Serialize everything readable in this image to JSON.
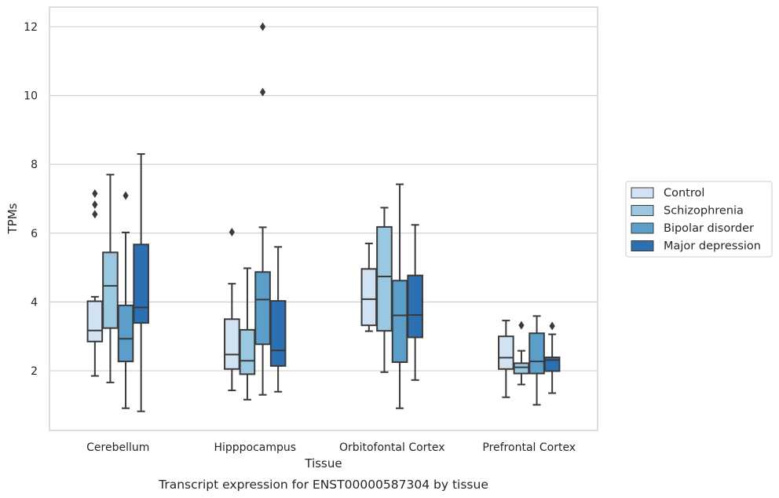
{
  "chart_data": {
    "type": "boxplot",
    "xlabel": "Tissue",
    "ylabel": "TPMs",
    "caption": "Transcript expression for ENST00000587304 by tissue",
    "yticks": [
      2,
      4,
      6,
      8,
      10,
      12
    ],
    "ylim": [
      0.3,
      12.55
    ],
    "grid": "horizontal",
    "legend_position": "right-center",
    "categories": [
      "Cerebellum",
      "Hipppocampus",
      "Orbitofontal Cortex",
      "Prefrontal Cortex"
    ],
    "series": [
      {
        "name": "Control",
        "color": "#d1e2f2",
        "boxes": [
          {
            "whisker_low": 1.85,
            "q1": 2.85,
            "median": 3.17,
            "q3": 4.02,
            "whisker_high": 4.15,
            "outliers": [
              6.55,
              6.83,
              7.15
            ]
          },
          {
            "whisker_low": 1.43,
            "q1": 2.05,
            "median": 2.47,
            "q3": 3.5,
            "whisker_high": 4.53,
            "outliers": [
              6.03
            ]
          },
          {
            "whisker_low": 3.15,
            "q1": 3.32,
            "median": 4.08,
            "q3": 4.96,
            "whisker_high": 5.7,
            "outliers": []
          },
          {
            "whisker_low": 1.23,
            "q1": 2.05,
            "median": 2.38,
            "q3": 3.0,
            "whisker_high": 3.46,
            "outliers": []
          }
        ]
      },
      {
        "name": "Schizophrenia",
        "color": "#9ac8e0",
        "boxes": [
          {
            "whisker_low": 1.66,
            "q1": 3.24,
            "median": 4.47,
            "q3": 5.44,
            "whisker_high": 7.7,
            "outliers": []
          },
          {
            "whisker_low": 1.16,
            "q1": 1.9,
            "median": 2.29,
            "q3": 3.19,
            "whisker_high": 4.98,
            "outliers": []
          },
          {
            "whisker_low": 1.96,
            "q1": 3.16,
            "median": 4.74,
            "q3": 6.18,
            "whisker_high": 6.74,
            "outliers": []
          },
          {
            "whisker_low": 1.6,
            "q1": 1.92,
            "median": 2.1,
            "q3": 2.22,
            "whisker_high": 2.58,
            "outliers": [
              3.32
            ]
          }
        ]
      },
      {
        "name": "Bipolar disorder",
        "color": "#5a9ec9",
        "boxes": [
          {
            "whisker_low": 0.91,
            "q1": 2.27,
            "median": 2.93,
            "q3": 3.9,
            "whisker_high": 6.02,
            "outliers": [
              7.09
            ]
          },
          {
            "whisker_low": 1.3,
            "q1": 2.77,
            "median": 4.07,
            "q3": 4.87,
            "whisker_high": 6.17,
            "outliers": [
              10.1,
              12.0
            ]
          },
          {
            "whisker_low": 0.91,
            "q1": 2.25,
            "median": 3.61,
            "q3": 4.62,
            "whisker_high": 7.42,
            "outliers": []
          },
          {
            "whisker_low": 1.01,
            "q1": 1.92,
            "median": 2.27,
            "q3": 3.09,
            "whisker_high": 3.59,
            "outliers": []
          }
        ]
      },
      {
        "name": "Major depression",
        "color": "#2c6fb2",
        "boxes": [
          {
            "whisker_low": 0.82,
            "q1": 3.39,
            "median": 3.84,
            "q3": 5.67,
            "whisker_high": 8.3,
            "outliers": []
          },
          {
            "whisker_low": 1.39,
            "q1": 2.14,
            "median": 2.59,
            "q3": 4.03,
            "whisker_high": 5.6,
            "outliers": []
          },
          {
            "whisker_low": 1.73,
            "q1": 2.97,
            "median": 3.62,
            "q3": 4.77,
            "whisker_high": 6.24,
            "outliers": []
          },
          {
            "whisker_low": 1.35,
            "q1": 1.99,
            "median": 2.31,
            "q3": 2.39,
            "whisker_high": 3.06,
            "outliers": [
              3.3
            ]
          }
        ]
      }
    ]
  }
}
